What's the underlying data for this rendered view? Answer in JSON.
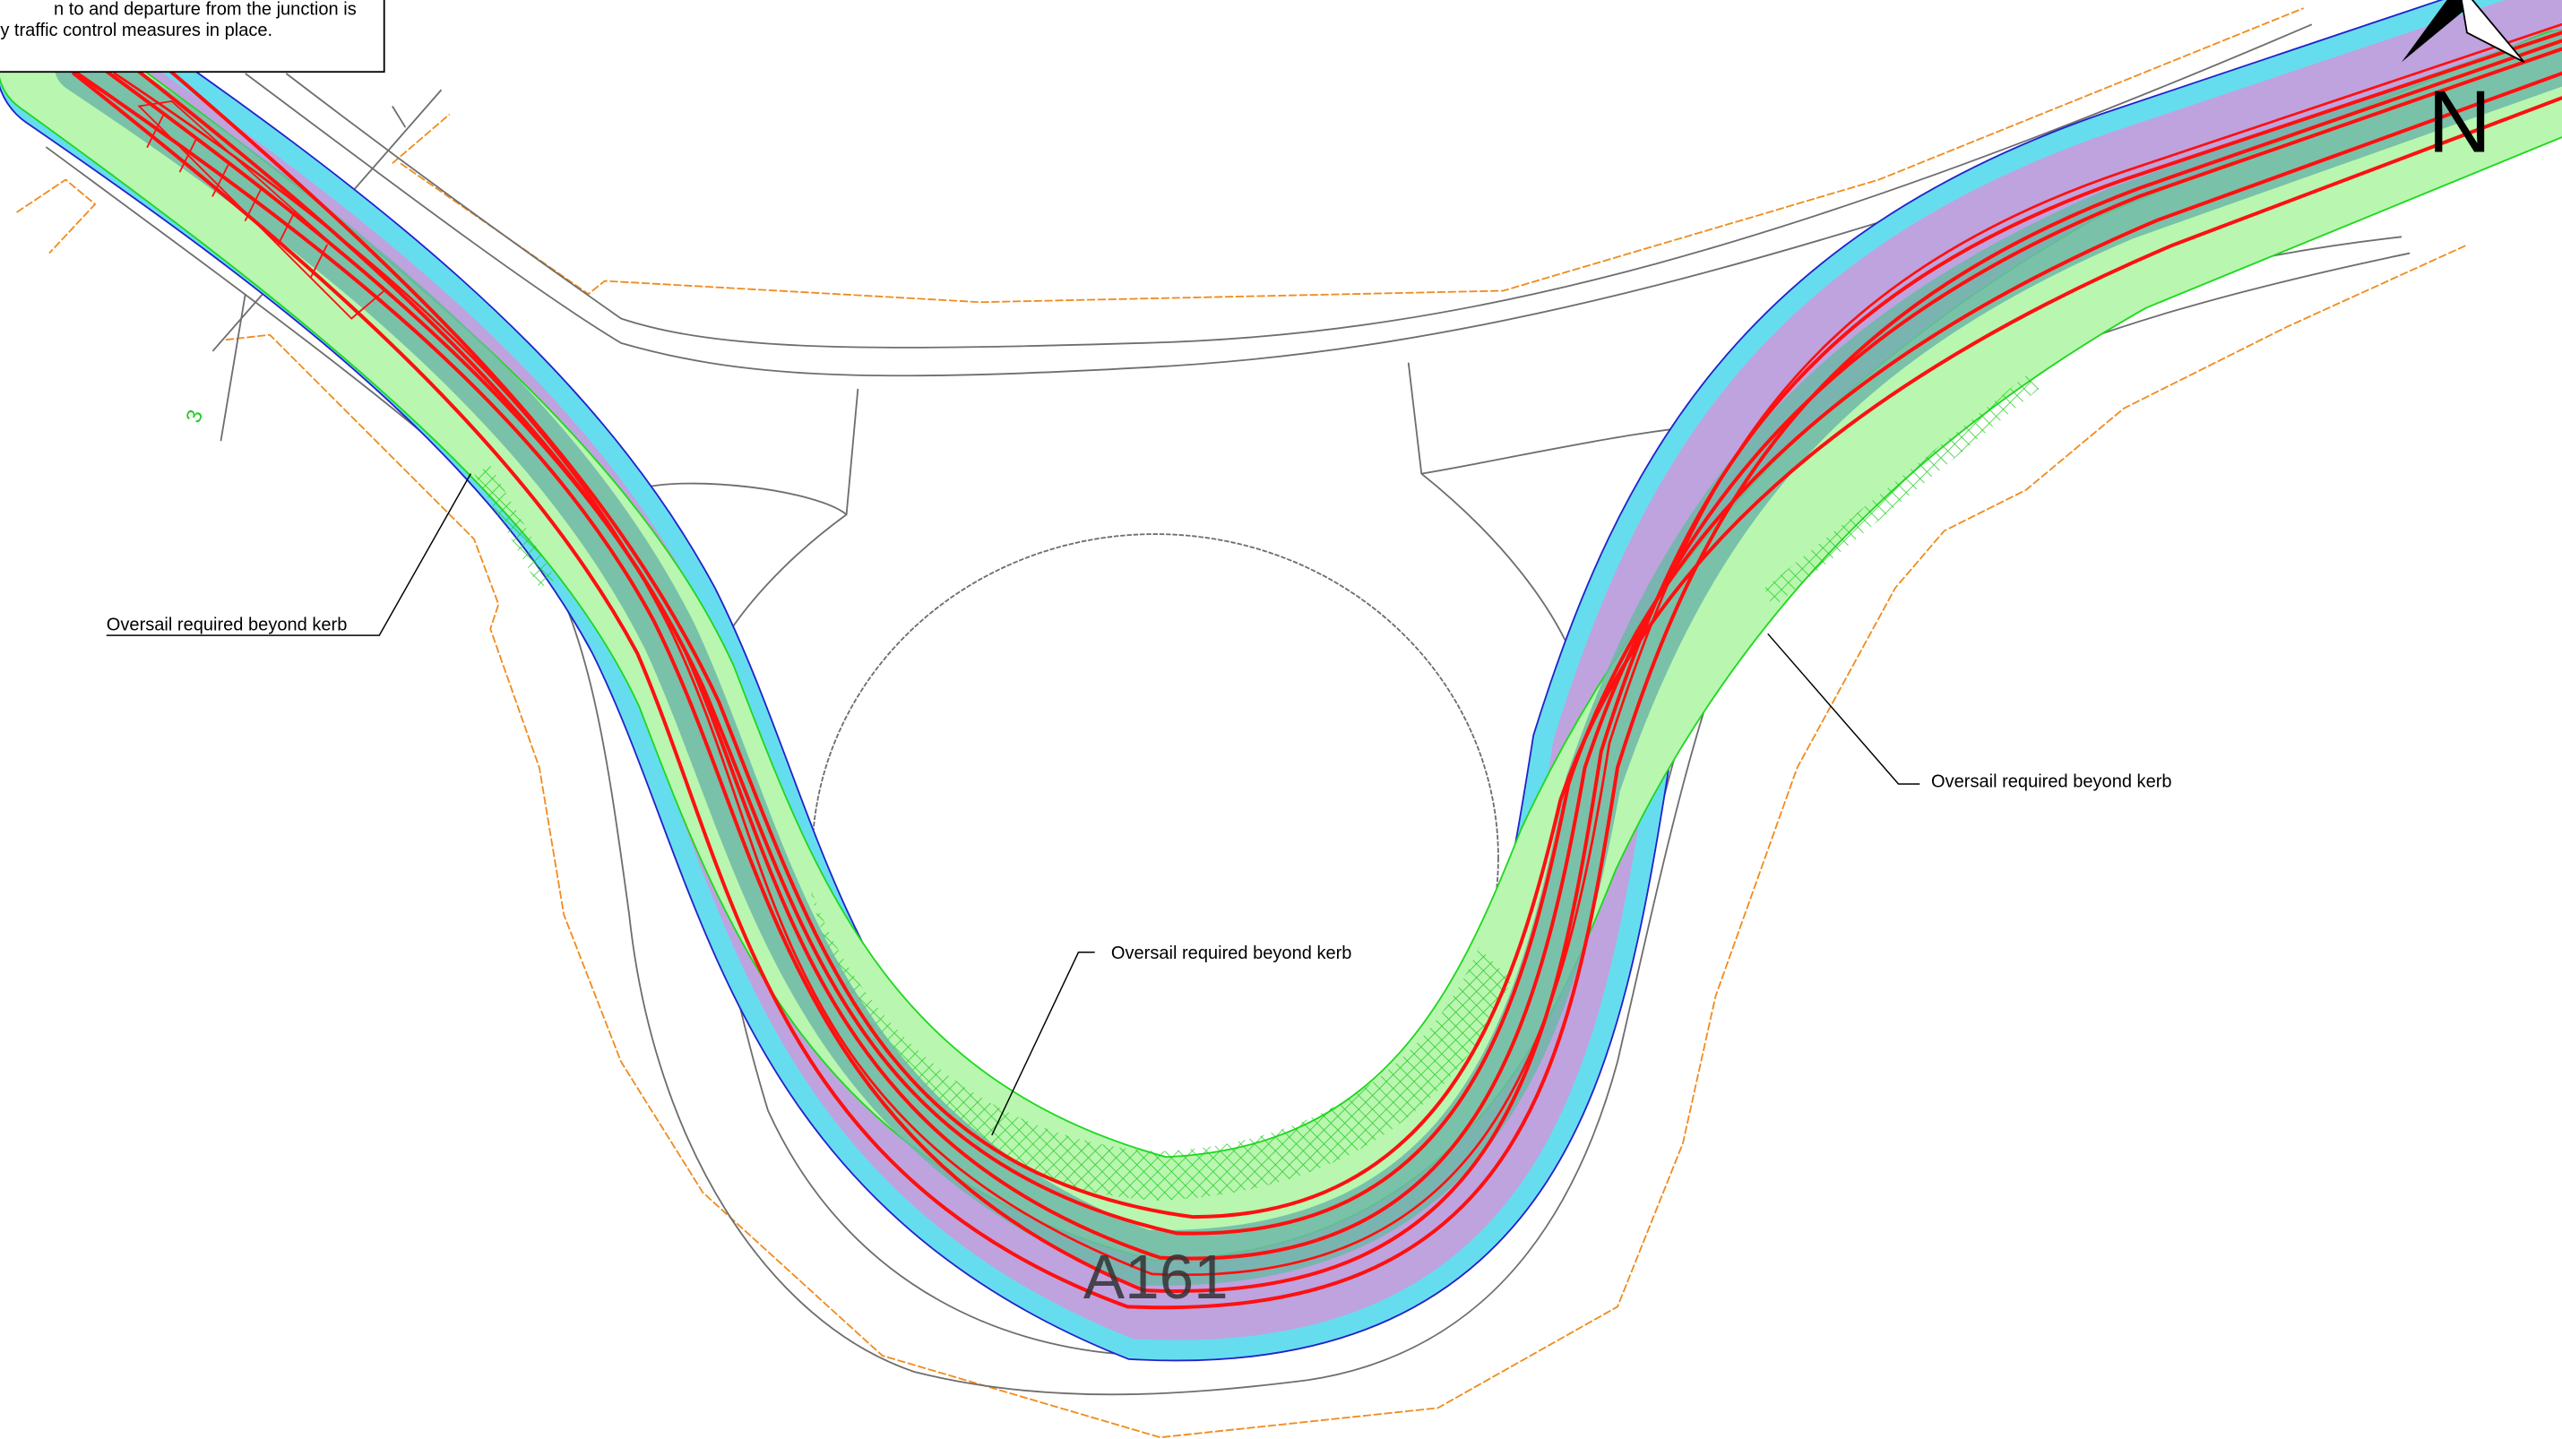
{
  "note": {
    "lines": [
      "n to and departure from the junction is",
      "y traffic control measures in place."
    ]
  },
  "annotations": [
    "Oversail required beyond kerb",
    "Oversail required beyond kerb",
    "Oversail required beyond kerb"
  ],
  "road_label": "A161",
  "side_label": "3",
  "north_label": "N"
}
